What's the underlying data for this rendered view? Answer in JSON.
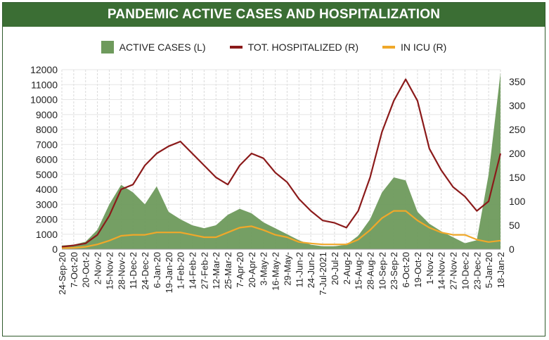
{
  "chart_data": {
    "type": "area",
    "title": "PANDEMIC ACTIVE CASES AND HOSPITALIZATION",
    "legend_placement": "top",
    "grid": true,
    "x": [
      "24-Sep-20",
      "7-Oct-20",
      "20-Oct-20",
      "2-Nov-20",
      "15-Nov-20",
      "28-Nov-20",
      "11-Dec-20",
      "24-Dec-20",
      "6-Jan-21",
      "19-Jan-21",
      "1-Feb-21",
      "14-Feb-21",
      "27-Feb-21",
      "12-Mar-21",
      "25-Mar-21",
      "7-Apr-21",
      "20-Apr-21",
      "3-May-21",
      "16-May-21",
      "29-May-21",
      "11-Jun-21",
      "24-Jun-21",
      "7-Jul-2021",
      "20-Jul-21",
      "2-Aug-21",
      "15-Aug-21",
      "28-Aug-21",
      "10-Sep-21",
      "23-Sep-21",
      "6-Oct-21",
      "19-Oct-21",
      "1-Nov-21",
      "14-Nov-21",
      "27-Nov-21",
      "10-Dec-21",
      "23-Dec-21",
      "5-Jan-22",
      "18-Jan-22"
    ],
    "tick_labels": [
      "24-Sep-20",
      "7-Oct-20",
      "20-Oct-2",
      "2-Nov-2",
      "15-Nov-2",
      "28-Nov-2",
      "11-Dec-2",
      "24-Dec-2",
      "6-Jan-20",
      "19-Jan-20",
      "1-Feb-20",
      "14-Feb-2",
      "27-Feb-2",
      "12-Mar-2",
      "25-Mar-2",
      "7-Apr-20",
      "20-Apr-2",
      "3-May-2",
      "16-May-2",
      "29-May-",
      "11-Jun-2",
      "24-Jun-2",
      "7-Jul-2021",
      "20-Jul-2",
      "2-Aug-2",
      "15-Aug-2",
      "28-Aug-2",
      "10-Sep-2",
      "23-Sep-2",
      "6-Oct-20",
      "19-Oct-2",
      "1-Nov-2",
      "14-Nov-2",
      "27-Nov-2",
      "10-Dec-2",
      "23-Dec-2",
      "5-Jan-20",
      "18-Jan-2"
    ],
    "y_left": {
      "min": 0,
      "max": 12000,
      "ticks": [
        0,
        1000,
        2000,
        3000,
        4000,
        5000,
        6000,
        7000,
        8000,
        9000,
        10000,
        11000,
        12000
      ]
    },
    "y_right": {
      "min": 0,
      "max": 375,
      "ticks": [
        0,
        50,
        100,
        150,
        200,
        250,
        300,
        350
      ]
    },
    "series": [
      {
        "name": "ACTIVE CASES (L)",
        "axis": "left",
        "kind": "area",
        "color": "#6e9a5c",
        "values": [
          250,
          300,
          500,
          1300,
          3000,
          4300,
          3800,
          3000,
          4200,
          2500,
          2000,
          1600,
          1400,
          1600,
          2300,
          2700,
          2400,
          1800,
          1400,
          1000,
          600,
          300,
          200,
          200,
          300,
          900,
          2000,
          3800,
          4800,
          4600,
          2500,
          1700,
          1200,
          800,
          400,
          600,
          5000,
          11800
        ]
      },
      {
        "name": "TOT. HOSPITALIZED (R)",
        "axis": "right",
        "kind": "line",
        "color": "#8b1a1a",
        "values": [
          5,
          8,
          12,
          30,
          70,
          125,
          135,
          175,
          200,
          215,
          225,
          200,
          175,
          150,
          135,
          175,
          200,
          190,
          160,
          140,
          105,
          80,
          60,
          55,
          45,
          80,
          150,
          245,
          310,
          355,
          310,
          210,
          165,
          130,
          110,
          80,
          100,
          200
        ]
      },
      {
        "name": "IN ICU (R)",
        "axis": "right",
        "kind": "line",
        "color": "#f0a82a",
        "values": [
          2,
          3,
          5,
          10,
          18,
          28,
          30,
          30,
          35,
          35,
          35,
          30,
          25,
          25,
          35,
          45,
          48,
          40,
          30,
          25,
          15,
          12,
          10,
          10,
          10,
          20,
          40,
          65,
          80,
          80,
          60,
          45,
          35,
          30,
          30,
          20,
          15,
          18
        ]
      }
    ]
  },
  "legend": {
    "active": "ACTIVE CASES (L)",
    "hosp": "TOT. HOSPITALIZED (R)",
    "icu": "IN ICU (R)"
  }
}
